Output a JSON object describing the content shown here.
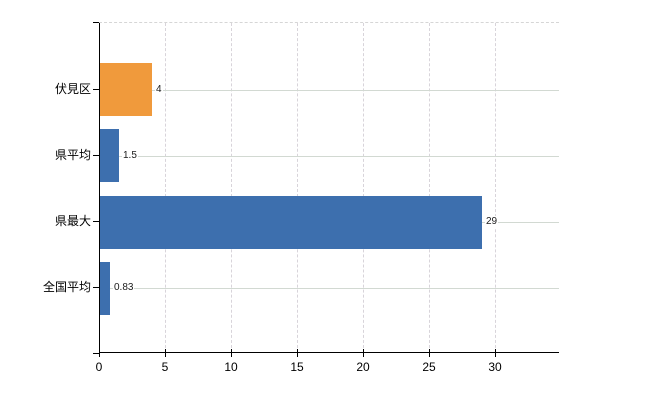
{
  "chart_data": {
    "type": "bar",
    "orientation": "horizontal",
    "title": "",
    "categories": [
      "伏見区",
      "県平均",
      "県最大",
      "全国平均"
    ],
    "values": [
      4,
      1.5,
      29,
      0.83
    ],
    "value_labels": [
      "4",
      "1.5",
      "29",
      "0.83"
    ],
    "bar_colors": [
      "#F09A3C",
      "#3D6FAE",
      "#3D6FAE",
      "#3D6FAE"
    ],
    "x_ticks": [
      0,
      5,
      10,
      15,
      20,
      25,
      30
    ],
    "x_tick_labels": [
      "0",
      "5",
      "10",
      "15",
      "20",
      "25",
      "30"
    ],
    "xlim": [
      0,
      34.85
    ],
    "xlabel": "",
    "ylabel": "",
    "grid": true,
    "legend": "none"
  },
  "colors": {
    "background": "#FFFFFF",
    "bar_orange": "#F09A3C",
    "bar_blue": "#3D6FAE",
    "grid_vertical": "#D8D4DA",
    "grid_horizontal": "#D2D9D2",
    "axis": "#000000",
    "text": "#000000",
    "value_text": "#1A1A1A"
  }
}
